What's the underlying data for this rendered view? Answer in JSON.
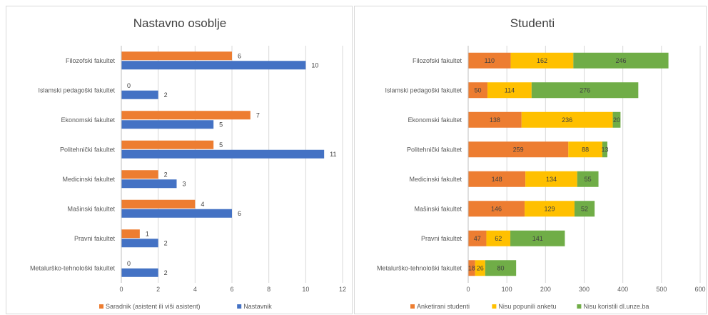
{
  "chart_data": [
    {
      "type": "bar",
      "orientation": "horizontal",
      "title": "Nastavno osoblje",
      "categories": [
        "Filozofski fakultet",
        "Islamski pedagoški fakultet",
        "Ekonomski fakultet",
        "Politehnički fakultet",
        "Medicinski fakultet",
        "Mašinski fakultet",
        "Pravni fakultet",
        "Metalurško-tehnološki fakultet"
      ],
      "series": [
        {
          "name": "Saradnik (asistent ili viši asistent)",
          "values": [
            6,
            0,
            7,
            5,
            2,
            4,
            1,
            0
          ],
          "color": "#ED7D31"
        },
        {
          "name": "Nastavnik",
          "values": [
            10,
            2,
            5,
            11,
            3,
            6,
            2,
            2
          ],
          "color": "#4472C4"
        }
      ],
      "xlim": [
        0,
        12
      ],
      "xticks": [
        0,
        2,
        4,
        6,
        8,
        10,
        12
      ],
      "grid": true,
      "legend": "bottom"
    },
    {
      "type": "bar",
      "orientation": "horizontal",
      "stacked": true,
      "title": "Studenti",
      "categories": [
        "Filozofski fakultet",
        "Islamski pedagoški fakultet",
        "Ekonomski fakultet",
        "Politehnički fakultet",
        "Medicinski fakultet",
        "Mašinski fakultet",
        "Pravni fakultet",
        "Metalurško-tehnološki fakultet"
      ],
      "series": [
        {
          "name": "Anketirani studenti",
          "values": [
            110,
            50,
            138,
            259,
            148,
            146,
            47,
            18
          ],
          "color": "#ED7D31"
        },
        {
          "name": "Nisu popunili anketu",
          "values": [
            162,
            114,
            236,
            88,
            134,
            129,
            62,
            26
          ],
          "color": "#FFC000"
        },
        {
          "name": "Nisu koristili dl.unze.ba",
          "values": [
            246,
            276,
            20,
            13,
            55,
            52,
            141,
            80
          ],
          "color": "#70AD47"
        }
      ],
      "xlim": [
        0,
        600
      ],
      "xticks": [
        0,
        100,
        200,
        300,
        400,
        500,
        600
      ],
      "grid": true,
      "legend": "bottom"
    }
  ]
}
